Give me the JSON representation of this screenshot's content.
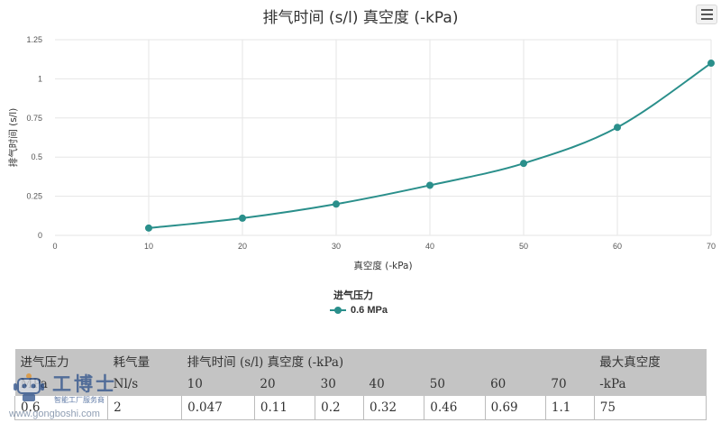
{
  "chart_data": {
    "type": "line",
    "title": "排气时间 (s/l) 真空度 (-kPa)",
    "xlabel": "真空度 (-kPa)",
    "ylabel": "排气时间 (s/l)",
    "xlim": [
      0,
      70
    ],
    "ylim": [
      0,
      1.25
    ],
    "x_ticks": [
      "0",
      "10",
      "20",
      "30",
      "40",
      "50",
      "60",
      "70"
    ],
    "y_ticks": [
      "0",
      "0.25",
      "0.5",
      "0.75",
      "1",
      "1.25"
    ],
    "grid": true,
    "legend_title": "进气压力",
    "legend_position": "bottom-center",
    "series": [
      {
        "name": "0.6 MPa",
        "color": "#2a8f8b",
        "x": [
          10,
          20,
          30,
          40,
          50,
          60,
          70
        ],
        "y": [
          0.047,
          0.11,
          0.2,
          0.32,
          0.46,
          0.69,
          1.1
        ]
      }
    ]
  },
  "menu_icon": "hamburger-menu-icon",
  "table": {
    "header_row1": [
      "进气压力",
      "耗气量",
      "排气时间 (s/l) 真空度 (-kPa)",
      "最大真空度"
    ],
    "header_row2": [
      "MPa",
      "Nl/s",
      "10",
      "20",
      "30",
      "40",
      "50",
      "60",
      "70",
      "-kPa"
    ],
    "rows": [
      [
        "0.6",
        "2",
        "0.047",
        "0.11",
        "0.2",
        "0.32",
        "0.46",
        "0.69",
        "1.1",
        "75"
      ]
    ]
  },
  "watermark": {
    "brand": "工博士",
    "tagline": "智能工厂服务商",
    "url": "www.gongboshi.com"
  }
}
